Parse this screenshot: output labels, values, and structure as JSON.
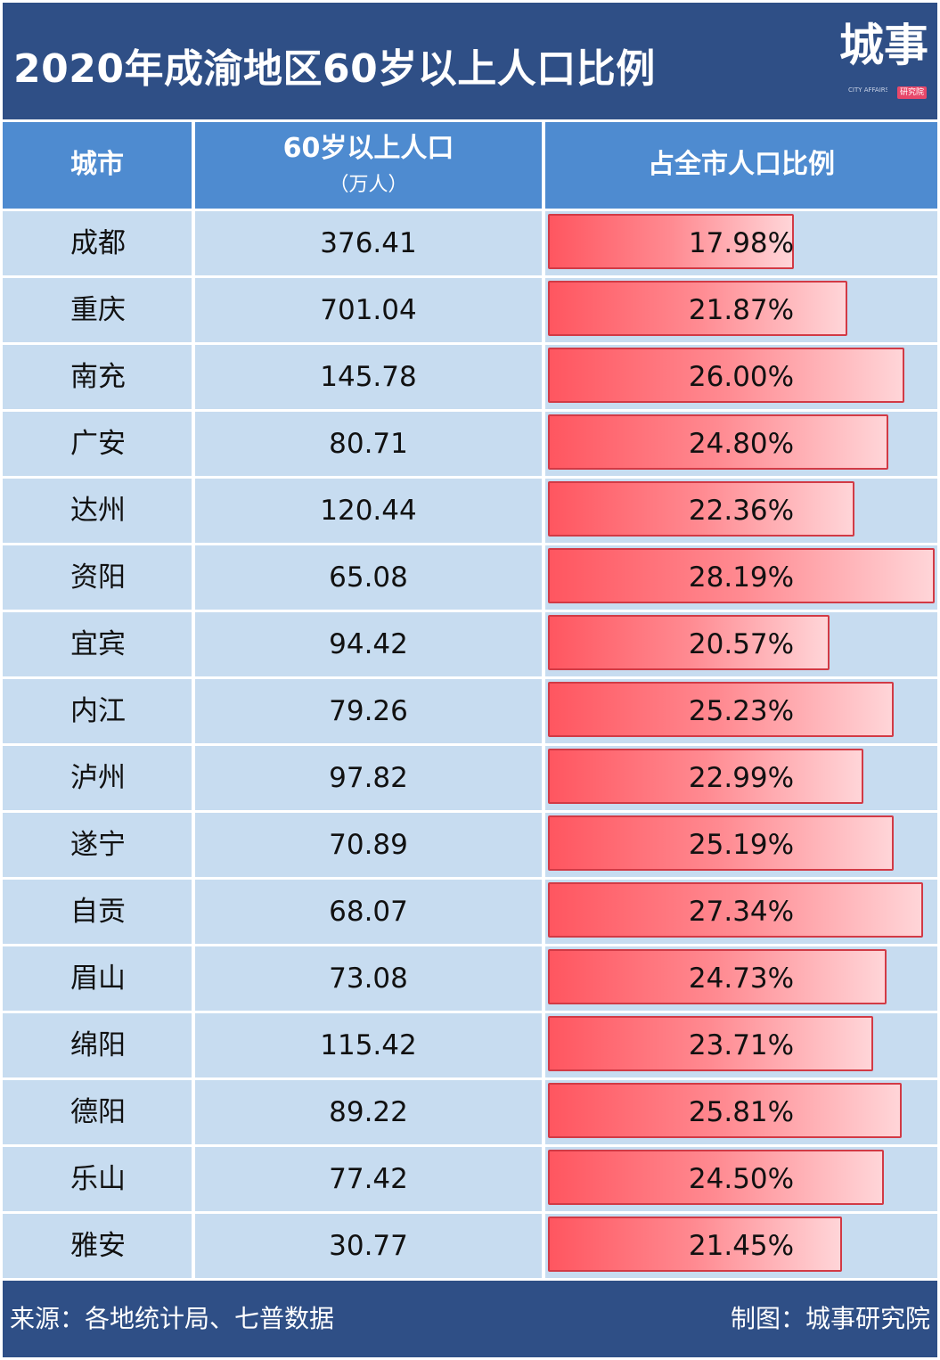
{
  "title": "2020年成渝地区60岁以上人口比例",
  "logo": {
    "main": "城事",
    "sub": "CITY AFFAIRS RESEARCH",
    "tag": "研究院"
  },
  "headers": {
    "city": "城市",
    "population_line1": "60岁以上人口",
    "population_line2": "（万人）",
    "share": "占全市人口比例"
  },
  "colors": {
    "title_bg": "#2f4f86",
    "header_bg": "#4e8bd0",
    "row_bg": "#c7dcf0",
    "bar_start": "#ff5660",
    "bar_end": "#ffd5d8"
  },
  "chart_data": {
    "type": "table",
    "title": "2020年成渝地区60岁以上人口比例",
    "columns": [
      "城市",
      "60岁以上人口（万人）",
      "占全市人口比例"
    ],
    "rows": [
      {
        "city": "成都",
        "population": "376.41",
        "share_label": "17.98%",
        "share": 17.98
      },
      {
        "city": "重庆",
        "population": "701.04",
        "share_label": "21.87%",
        "share": 21.87
      },
      {
        "city": "南充",
        "population": "145.78",
        "share_label": "26.00%",
        "share": 26.0
      },
      {
        "city": "广安",
        "population": "80.71",
        "share_label": "24.80%",
        "share": 24.8
      },
      {
        "city": "达州",
        "population": "120.44",
        "share_label": "22.36%",
        "share": 22.36
      },
      {
        "city": "资阳",
        "population": "65.08",
        "share_label": "28.19%",
        "share": 28.19
      },
      {
        "city": "宜宾",
        "population": "94.42",
        "share_label": "20.57%",
        "share": 20.57
      },
      {
        "city": "内江",
        "population": "79.26",
        "share_label": "25.23%",
        "share": 25.23
      },
      {
        "city": "泸州",
        "population": "97.82",
        "share_label": "22.99%",
        "share": 22.99
      },
      {
        "city": "遂宁",
        "population": "70.89",
        "share_label": "25.19%",
        "share": 25.19
      },
      {
        "city": "自贡",
        "population": "68.07",
        "share_label": "27.34%",
        "share": 27.34
      },
      {
        "city": "眉山",
        "population": "73.08",
        "share_label": "24.73%",
        "share": 24.73
      },
      {
        "city": "绵阳",
        "population": "115.42",
        "share_label": "23.71%",
        "share": 23.71
      },
      {
        "city": "德阳",
        "population": "89.22",
        "share_label": "25.81%",
        "share": 25.81
      },
      {
        "city": "乐山",
        "population": "77.42",
        "share_label": "24.50%",
        "share": 24.5
      },
      {
        "city": "雅安",
        "population": "30.77",
        "share_label": "21.45%",
        "share": 21.45
      }
    ]
  },
  "footer": {
    "source": "来源：各地统计局、七普数据",
    "credit": "制图：城事研究院"
  }
}
